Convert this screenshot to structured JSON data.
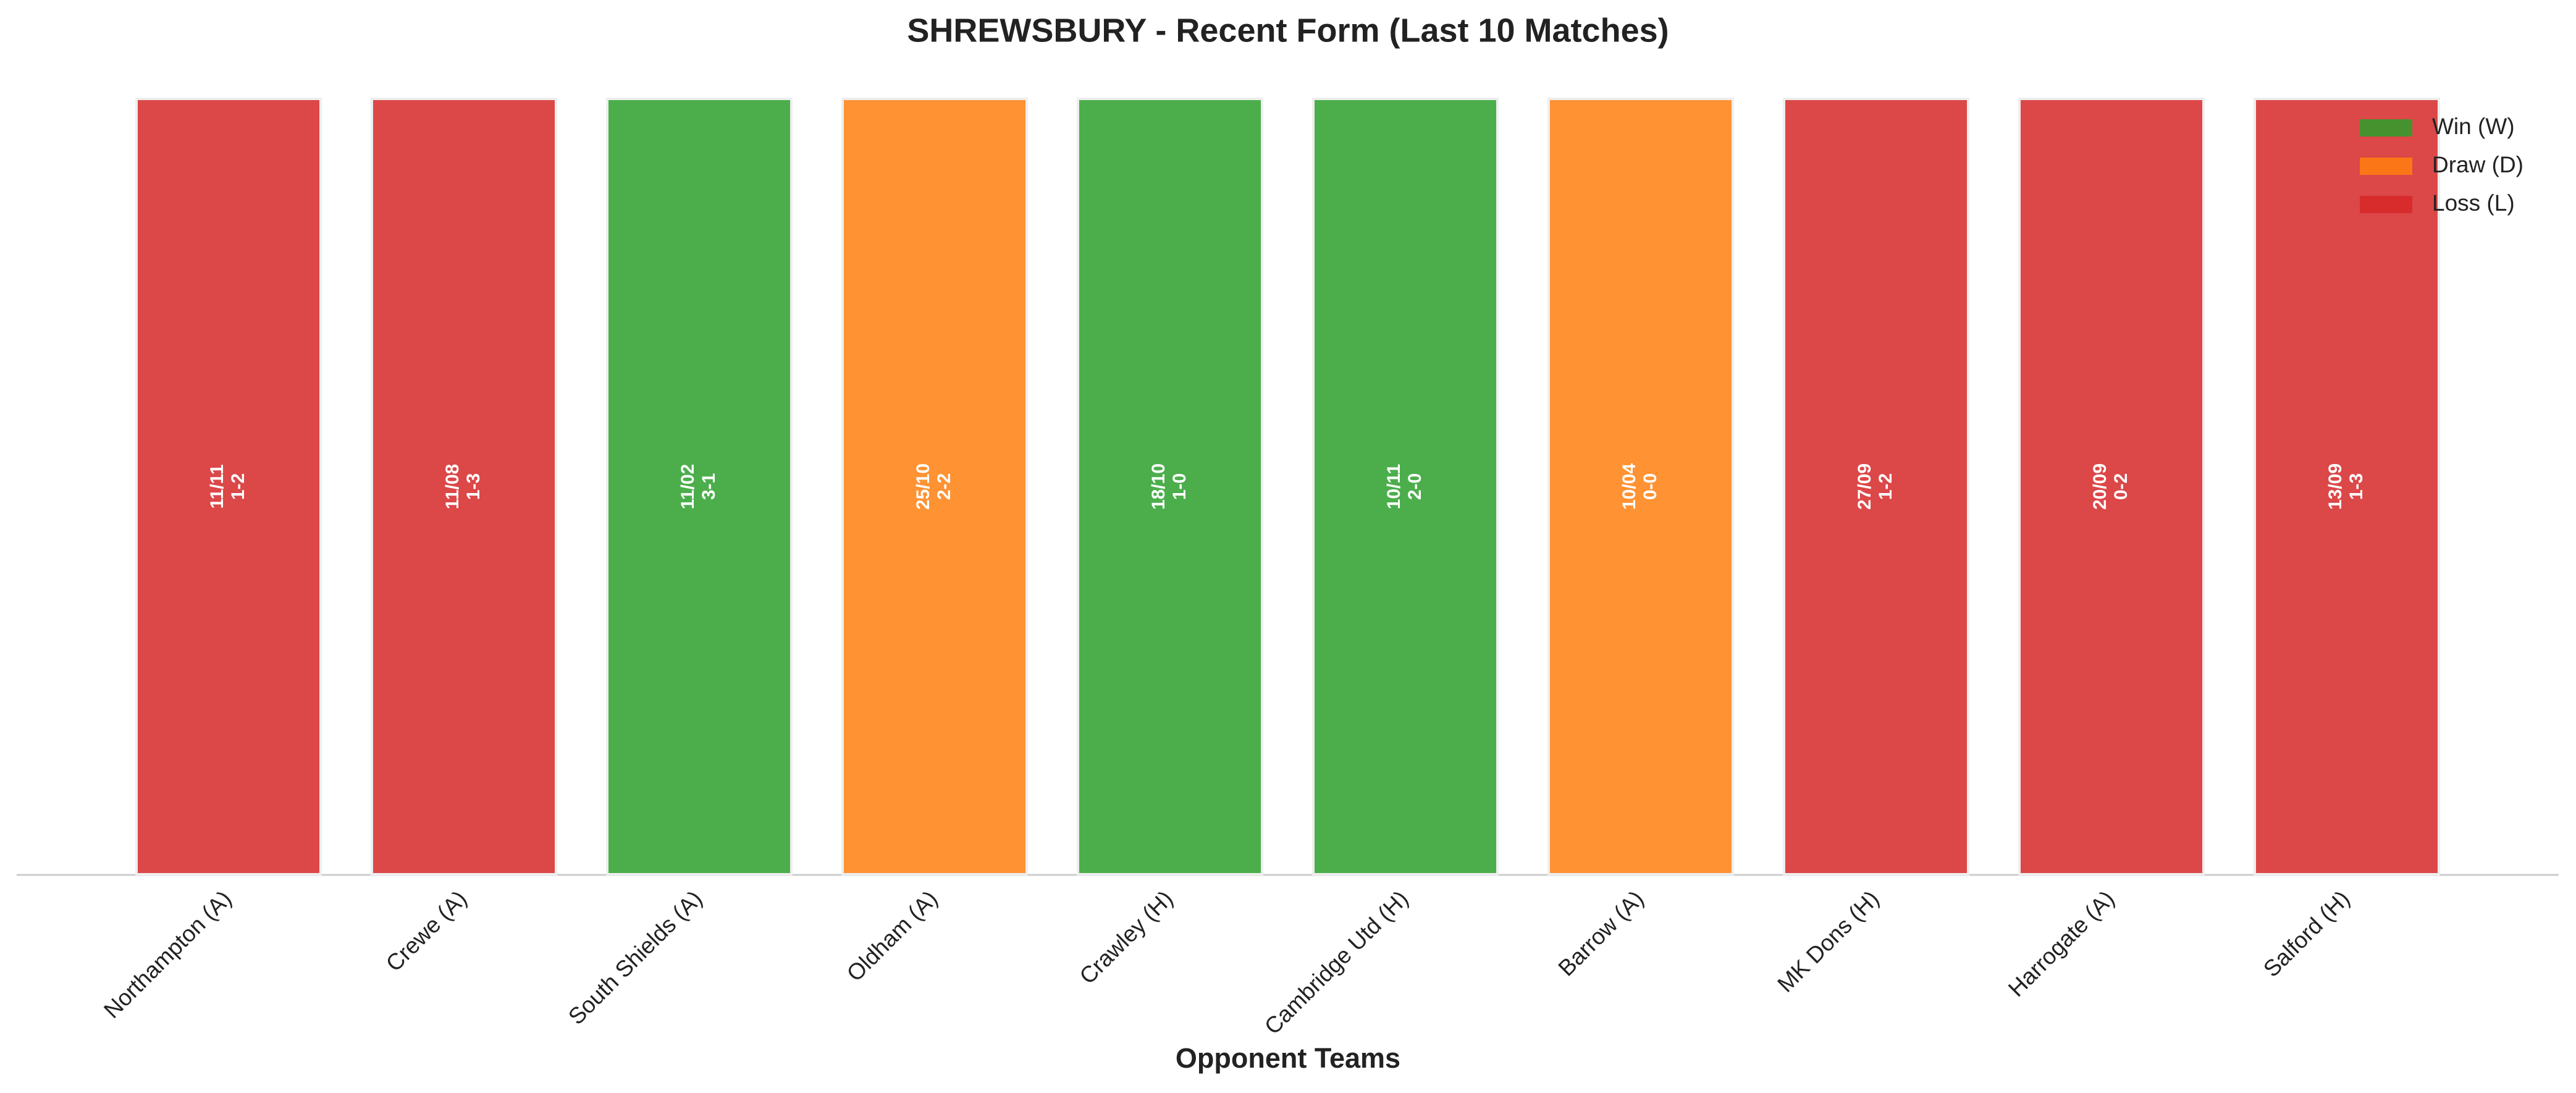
{
  "chart_data": {
    "type": "bar",
    "title": "SHREWSBURY - Recent Form (Last 10 Matches)",
    "x_label": "Opponent Teams",
    "categories": [
      "Northampton (A)",
      "Crewe (A)",
      "South Shields (A)",
      "Oldham (A)",
      "Crawley (H)",
      "Cambridge Utd (H)",
      "Barrow (A)",
      "MK Dons (H)",
      "Harrogate (A)",
      "Salford (H)"
    ],
    "values": [
      1,
      1,
      1,
      1,
      1,
      1,
      1,
      1,
      1,
      1
    ],
    "dates": [
      "11/11",
      "11/08",
      "11/02",
      "25/10",
      "18/10",
      "10/11",
      "10/04",
      "27/09",
      "20/09",
      "13/09"
    ],
    "scores": [
      "1-2",
      "1-3",
      "3-1",
      "2-2",
      "1-0",
      "2-0",
      "0-0",
      "1-2",
      "0-2",
      "1-3"
    ],
    "colors": [
      "#d62728",
      "#d62728",
      "#2ca02c",
      "#ff7f0e",
      "#2ca02c",
      "#2ca02c",
      "#ff7f0e",
      "#d62728",
      "#d62728",
      "#d62728"
    ],
    "ylim": [
      0,
      1
    ],
    "legend": [
      {
        "name": "Win (W)",
        "color": "#2ca02c"
      },
      {
        "name": "Draw (D)",
        "color": "#ff7f0e"
      },
      {
        "name": "Loss (L)",
        "color": "#d62728"
      }
    ],
    "legend_position": "upper right"
  }
}
